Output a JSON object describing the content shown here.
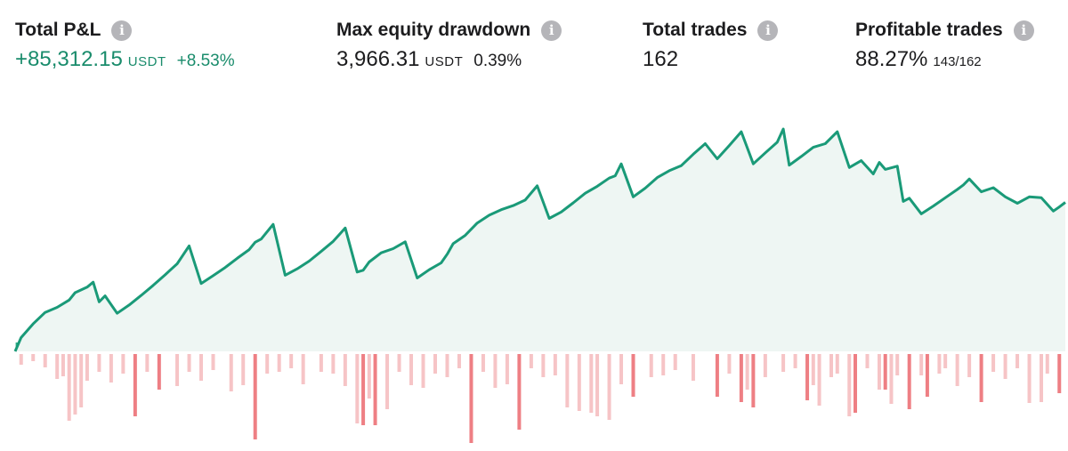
{
  "stats": {
    "total_pnl": {
      "title": "Total P&L",
      "value": "+85,312.15",
      "unit": "USDT",
      "pct": "+8.53%"
    },
    "max_drawdown": {
      "title": "Max equity drawdown",
      "value": "3,966.31",
      "unit": "USDT",
      "pct": "0.39%"
    },
    "total_trades": {
      "title": "Total trades",
      "value": "162"
    },
    "profitable_trades": {
      "title": "Profitable trades",
      "value": "88.27%",
      "ratio": "143/162"
    }
  },
  "icons": {
    "info": "info-icon"
  },
  "colors": {
    "positive": "#1a8c6c",
    "equity_line": "#1a9a78",
    "area_fill": "#eef6f3",
    "win_bar": "#2fae88",
    "loss_bar_light": "#f6c4c6",
    "loss_bar_dark": "#ee7f84"
  },
  "chart_data": {
    "type": "area",
    "series": [
      {
        "x": [
          0,
          1,
          3,
          5,
          7,
          9,
          10,
          12,
          13,
          14,
          15,
          17,
          19,
          21,
          23,
          25,
          26,
          27,
          29,
          31,
          33,
          35,
          37,
          39,
          40,
          41,
          43,
          45,
          47,
          49,
          51,
          53,
          55,
          57,
          58,
          59,
          61,
          63,
          65,
          67,
          69,
          71,
          72,
          73,
          75,
          77,
          79,
          81,
          83,
          85,
          87,
          89,
          91,
          93,
          95,
          97,
          99,
          100,
          101,
          103,
          105,
          107,
          109,
          111,
          113,
          115,
          117,
          119,
          121,
          123,
          125,
          127,
          128,
          129,
          131,
          133,
          135,
          137,
          139,
          141,
          143,
          144,
          145,
          147,
          148,
          149,
          151,
          153,
          155,
          157,
          158,
          159,
          161,
          163,
          165,
          167,
          169,
          171,
          173,
          174,
          175
        ],
        "y": [
          0,
          3000,
          6000,
          8500,
          9600,
          11200,
          12800,
          14000,
          15100,
          10800,
          12100,
          8300,
          10100,
          12200,
          14400,
          16700,
          17900,
          19100,
          23000,
          14800,
          16500,
          18300,
          20300,
          22200,
          23800,
          24500,
          27700,
          16600,
          18000,
          19700,
          21800,
          24000,
          26900,
          17300,
          17700,
          19500,
          21500,
          22400,
          23900,
          16000,
          17800,
          19300,
          21200,
          23500,
          25300,
          28000,
          29700,
          30900,
          31800,
          33000,
          36100,
          29000,
          30400,
          32400,
          34500,
          36000,
          37800,
          38300,
          40900,
          33700,
          35600,
          37900,
          39400,
          40500,
          43000,
          45300,
          42000,
          44900,
          47900,
          40900,
          43300,
          45600,
          48500,
          40600,
          42500,
          44500,
          45300,
          47900,
          40100,
          41600,
          38700,
          41200,
          39700,
          40400,
          32700,
          33400,
          30000,
          31700,
          33500,
          35300,
          36300,
          37600,
          34800,
          35700,
          33700,
          32300,
          33700,
          33500,
          30600,
          31500,
          32500
        ]
      }
    ],
    "pnl_bars": [
      1,
      1,
      1,
      1,
      1,
      1,
      1,
      1,
      1,
      1,
      1,
      1,
      1,
      1,
      1,
      1,
      1,
      1,
      1,
      1,
      1,
      1,
      1,
      1,
      1,
      1,
      1,
      1,
      1,
      1,
      1,
      1,
      1,
      1,
      1,
      1,
      1,
      1,
      1,
      1,
      1,
      1,
      1,
      1,
      1,
      1,
      1,
      1,
      1,
      1,
      1,
      1,
      1,
      1,
      1,
      1,
      1,
      1,
      1,
      1,
      1,
      1,
      1,
      1,
      1,
      1,
      1,
      1,
      1,
      1,
      1,
      1,
      1,
      1,
      1,
      1,
      1,
      1,
      1,
      1,
      1,
      1,
      1,
      1,
      1,
      1,
      1,
      1,
      1,
      1,
      1,
      1,
      1,
      1,
      1,
      1,
      1,
      1,
      1,
      1,
      1,
      1,
      1,
      1,
      1,
      1,
      1,
      1,
      1,
      1,
      1,
      1,
      1,
      1,
      1,
      1,
      1,
      1,
      1,
      1,
      1,
      1,
      1,
      1,
      1,
      1,
      1,
      1,
      1,
      1,
      1,
      1,
      1,
      1,
      1,
      1,
      1,
      1,
      1,
      1,
      1,
      1,
      1,
      1,
      1,
      1,
      1,
      1,
      1,
      1,
      1,
      1,
      1,
      1,
      1,
      1,
      1,
      1,
      1,
      1,
      1,
      1,
      1,
      1,
      1,
      1,
      1,
      1,
      1,
      1,
      1,
      1,
      1,
      1,
      1,
      1,
      1,
      1,
      1,
      1,
      1,
      1,
      1,
      1,
      1,
      1,
      1,
      1,
      1,
      1
    ],
    "loss_bars": [
      {
        "x": 1,
        "v": -1.2,
        "dark": false
      },
      {
        "x": 3,
        "v": -0.8,
        "dark": false
      },
      {
        "x": 5,
        "v": -1.5,
        "dark": false
      },
      {
        "x": 7,
        "v": -2.8,
        "dark": false
      },
      {
        "x": 8,
        "v": -2.5,
        "dark": false
      },
      {
        "x": 9,
        "v": -7.5,
        "dark": false
      },
      {
        "x": 10,
        "v": -6.8,
        "dark": false
      },
      {
        "x": 11,
        "v": -6.0,
        "dark": false
      },
      {
        "x": 12,
        "v": -3.0,
        "dark": false
      },
      {
        "x": 14,
        "v": -2.0,
        "dark": false
      },
      {
        "x": 16,
        "v": -3.2,
        "dark": false
      },
      {
        "x": 18,
        "v": -2.2,
        "dark": false
      },
      {
        "x": 20,
        "v": -7.0,
        "dark": true
      },
      {
        "x": 22,
        "v": -2.0,
        "dark": false
      },
      {
        "x": 24,
        "v": -4.0,
        "dark": true
      },
      {
        "x": 27,
        "v": -3.6,
        "dark": false
      },
      {
        "x": 29,
        "v": -2.0,
        "dark": false
      },
      {
        "x": 31,
        "v": -3.0,
        "dark": false
      },
      {
        "x": 33,
        "v": -1.8,
        "dark": false
      },
      {
        "x": 36,
        "v": -4.2,
        "dark": false
      },
      {
        "x": 38,
        "v": -3.5,
        "dark": false
      },
      {
        "x": 40,
        "v": -9.6,
        "dark": true
      },
      {
        "x": 42,
        "v": -2.2,
        "dark": false
      },
      {
        "x": 44,
        "v": -2.0,
        "dark": false
      },
      {
        "x": 46,
        "v": -1.6,
        "dark": false
      },
      {
        "x": 48,
        "v": -3.4,
        "dark": false
      },
      {
        "x": 51,
        "v": -2.0,
        "dark": false
      },
      {
        "x": 53,
        "v": -2.2,
        "dark": false
      },
      {
        "x": 55,
        "v": -3.6,
        "dark": false
      },
      {
        "x": 57,
        "v": -7.8,
        "dark": false
      },
      {
        "x": 58,
        "v": -8.0,
        "dark": true
      },
      {
        "x": 59,
        "v": -5.0,
        "dark": false
      },
      {
        "x": 60,
        "v": -8.0,
        "dark": true
      },
      {
        "x": 62,
        "v": -6.2,
        "dark": false
      },
      {
        "x": 64,
        "v": -2.0,
        "dark": false
      },
      {
        "x": 66,
        "v": -3.5,
        "dark": false
      },
      {
        "x": 68,
        "v": -3.8,
        "dark": false
      },
      {
        "x": 70,
        "v": -2.2,
        "dark": false
      },
      {
        "x": 72,
        "v": -2.6,
        "dark": false
      },
      {
        "x": 74,
        "v": -1.6,
        "dark": false
      },
      {
        "x": 76,
        "v": -10.0,
        "dark": true
      },
      {
        "x": 78,
        "v": -2.0,
        "dark": false
      },
      {
        "x": 80,
        "v": -3.8,
        "dark": false
      },
      {
        "x": 82,
        "v": -3.4,
        "dark": false
      },
      {
        "x": 84,
        "v": -8.5,
        "dark": true
      },
      {
        "x": 86,
        "v": -1.6,
        "dark": false
      },
      {
        "x": 88,
        "v": -2.6,
        "dark": false
      },
      {
        "x": 90,
        "v": -2.4,
        "dark": false
      },
      {
        "x": 92,
        "v": -6.0,
        "dark": false
      },
      {
        "x": 94,
        "v": -6.4,
        "dark": false
      },
      {
        "x": 96,
        "v": -6.6,
        "dark": false
      },
      {
        "x": 97,
        "v": -7.0,
        "dark": false
      },
      {
        "x": 99,
        "v": -7.4,
        "dark": false
      },
      {
        "x": 101,
        "v": -3.4,
        "dark": false
      },
      {
        "x": 103,
        "v": -4.8,
        "dark": true
      },
      {
        "x": 106,
        "v": -2.6,
        "dark": false
      },
      {
        "x": 108,
        "v": -2.4,
        "dark": false
      },
      {
        "x": 110,
        "v": -1.8,
        "dark": false
      },
      {
        "x": 113,
        "v": -3.0,
        "dark": false
      },
      {
        "x": 117,
        "v": -4.8,
        "dark": true
      },
      {
        "x": 119,
        "v": -2.2,
        "dark": false
      },
      {
        "x": 121,
        "v": -5.4,
        "dark": true
      },
      {
        "x": 122,
        "v": -4.0,
        "dark": false
      },
      {
        "x": 123,
        "v": -6.0,
        "dark": true
      },
      {
        "x": 125,
        "v": -2.6,
        "dark": false
      },
      {
        "x": 128,
        "v": -2.0,
        "dark": false
      },
      {
        "x": 130,
        "v": -1.6,
        "dark": false
      },
      {
        "x": 132,
        "v": -5.2,
        "dark": true
      },
      {
        "x": 133,
        "v": -3.5,
        "dark": false
      },
      {
        "x": 134,
        "v": -5.8,
        "dark": false
      },
      {
        "x": 136,
        "v": -2.6,
        "dark": false
      },
      {
        "x": 137,
        "v": -2.2,
        "dark": false
      },
      {
        "x": 139,
        "v": -7.0,
        "dark": false
      },
      {
        "x": 140,
        "v": -6.6,
        "dark": true
      },
      {
        "x": 142,
        "v": -1.6,
        "dark": false
      },
      {
        "x": 144,
        "v": -4.0,
        "dark": false
      },
      {
        "x": 145,
        "v": -4.0,
        "dark": true
      },
      {
        "x": 146,
        "v": -5.6,
        "dark": false
      },
      {
        "x": 147,
        "v": -2.4,
        "dark": false
      },
      {
        "x": 149,
        "v": -6.2,
        "dark": true
      },
      {
        "x": 151,
        "v": -2.4,
        "dark": false
      },
      {
        "x": 152,
        "v": -4.8,
        "dark": true
      },
      {
        "x": 154,
        "v": -2.2,
        "dark": false
      },
      {
        "x": 155,
        "v": -1.6,
        "dark": false
      },
      {
        "x": 157,
        "v": -3.6,
        "dark": false
      },
      {
        "x": 159,
        "v": -2.6,
        "dark": false
      },
      {
        "x": 161,
        "v": -5.4,
        "dark": true
      },
      {
        "x": 163,
        "v": -2.0,
        "dark": false
      },
      {
        "x": 165,
        "v": -2.8,
        "dark": false
      },
      {
        "x": 167,
        "v": -1.6,
        "dark": false
      },
      {
        "x": 169,
        "v": -5.5,
        "dark": false
      },
      {
        "x": 171,
        "v": -5.4,
        "dark": false
      },
      {
        "x": 172,
        "v": -2.2,
        "dark": false
      },
      {
        "x": 174,
        "v": -4.4,
        "dark": true
      }
    ],
    "title": "",
    "xlabel": "",
    "ylabel": "",
    "xlim": [
      0,
      175
    ],
    "ylim": [
      0,
      48500
    ],
    "grid": false,
    "legend": "none"
  }
}
